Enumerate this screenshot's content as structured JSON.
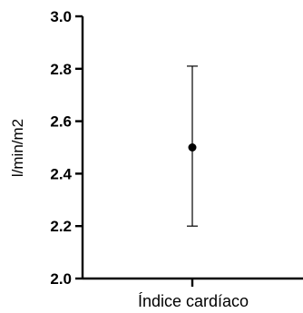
{
  "chart_data": {
    "type": "scatter",
    "title": "",
    "ylabel": "l/min/m2",
    "xlabel": "",
    "categories": [
      "Índice cardíaco"
    ],
    "series": [
      {
        "values": [
          2.5
        ],
        "error_low": [
          2.2
        ],
        "error_high": [
          2.81
        ]
      }
    ],
    "ylim": [
      2.0,
      3.0
    ],
    "yticks": [
      "2.0",
      "2.2",
      "2.4",
      "2.6",
      "2.8",
      "3.0"
    ],
    "ytick_values": [
      2.0,
      2.2,
      2.4,
      2.6,
      2.8,
      3.0
    ],
    "grid": false,
    "legend": "none"
  }
}
